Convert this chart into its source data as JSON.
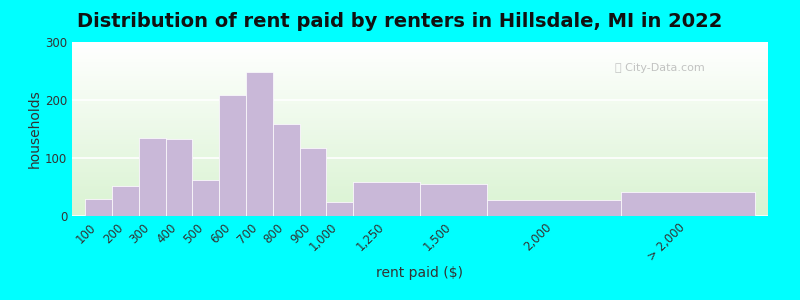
{
  "title": "Distribution of rent paid by renters in Hillsdale, MI in 2022",
  "xlabel": "rent paid ($)",
  "ylabel": "households",
  "bar_color": "#C9B8D8",
  "bar_edgecolor": "#ffffff",
  "background_outer": "#00FFFF",
  "ylim": [
    0,
    300
  ],
  "yticks": [
    0,
    100,
    200,
    300
  ],
  "categories": [
    "100",
    "200",
    "300",
    "400",
    "500",
    "600",
    "700",
    "800",
    "900",
    "1,000",
    "1,250",
    "1,500",
    "2,000",
    "> 2,000"
  ],
  "values": [
    30,
    52,
    135,
    132,
    62,
    208,
    248,
    158,
    118,
    25,
    58,
    55,
    27,
    42
  ],
  "bar_widths": [
    1,
    1,
    1,
    1,
    1,
    1,
    1,
    1,
    1,
    1,
    2.5,
    2.5,
    5,
    5
  ],
  "bar_positions": [
    0,
    1,
    2,
    3,
    4,
    5,
    6,
    7,
    8,
    9,
    10,
    12.5,
    15,
    20
  ],
  "title_fontsize": 14,
  "axis_label_fontsize": 10,
  "tick_fontsize": 8.5
}
